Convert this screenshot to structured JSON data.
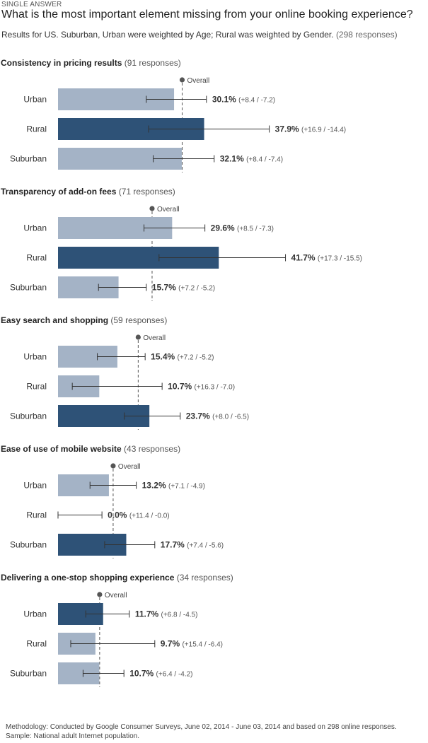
{
  "header": {
    "kicker": "SINGLE ANSWER",
    "title": "What is the most important element missing from your online booking experience?",
    "subtitle": "Results for US. Suburban, Urban were weighted by Age; Rural was weighted by Gender.",
    "total_responses": "(298 responses)"
  },
  "colors": {
    "base": "#a4b3c6",
    "highlight": "#2e5277",
    "overall_line": "#555555",
    "error_bar": "#333333"
  },
  "chart_data": {
    "type": "bar",
    "orientation": "horizontal",
    "overall_label": "Overall",
    "groups": [
      {
        "title": "Consistency in pricing results",
        "responses": "(91 responses)",
        "overall": 32.2,
        "rows": [
          {
            "label": "Urban",
            "value": 30.1,
            "value_label": "30.1%",
            "err_label": "(+8.4 / -7.2)",
            "plus": 8.4,
            "minus": 7.2,
            "highlight": false
          },
          {
            "label": "Rural",
            "value": 37.9,
            "value_label": "37.9%",
            "err_label": "(+16.9 / -14.4)",
            "plus": 16.9,
            "minus": 14.4,
            "highlight": true
          },
          {
            "label": "Suburban",
            "value": 32.1,
            "value_label": "32.1%",
            "err_label": "(+8.4 / -7.4)",
            "plus": 8.4,
            "minus": 7.4,
            "highlight": false
          }
        ]
      },
      {
        "title": "Transparency of add-on fees",
        "responses": "(71 responses)",
        "overall": 24.4,
        "rows": [
          {
            "label": "Urban",
            "value": 29.6,
            "value_label": "29.6%",
            "err_label": "(+8.5 / -7.3)",
            "plus": 8.5,
            "minus": 7.3,
            "highlight": false
          },
          {
            "label": "Rural",
            "value": 41.7,
            "value_label": "41.7%",
            "err_label": "(+17.3 / -15.5)",
            "plus": 17.3,
            "minus": 15.5,
            "highlight": true
          },
          {
            "label": "Suburban",
            "value": 15.7,
            "value_label": "15.7%",
            "err_label": "(+7.2 / -5.2)",
            "plus": 7.2,
            "minus": 5.2,
            "highlight": false
          }
        ]
      },
      {
        "title": "Easy search and shopping",
        "responses": "(59 responses)",
        "overall": 20.8,
        "rows": [
          {
            "label": "Urban",
            "value": 15.4,
            "value_label": "15.4%",
            "err_label": "(+7.2 / -5.2)",
            "plus": 7.2,
            "minus": 5.2,
            "highlight": false
          },
          {
            "label": "Rural",
            "value": 10.7,
            "value_label": "10.7%",
            "err_label": "(+16.3 / -7.0)",
            "plus": 16.3,
            "minus": 7.0,
            "highlight": false
          },
          {
            "label": "Suburban",
            "value": 23.7,
            "value_label": "23.7%",
            "err_label": "(+8.0 / -6.5)",
            "plus": 8.0,
            "minus": 6.5,
            "highlight": true
          }
        ]
      },
      {
        "title": "Ease of use of mobile website",
        "responses": "(43 responses)",
        "overall": 14.3,
        "rows": [
          {
            "label": "Urban",
            "value": 13.2,
            "value_label": "13.2%",
            "err_label": "(+7.1 / -4.9)",
            "plus": 7.1,
            "minus": 4.9,
            "highlight": false
          },
          {
            "label": "Rural",
            "value": 0.0,
            "value_label": "0.0%",
            "err_label": "(+11.4 / -0.0)",
            "plus": 11.4,
            "minus": 0.0,
            "highlight": false
          },
          {
            "label": "Suburban",
            "value": 17.7,
            "value_label": "17.7%",
            "err_label": "(+7.4 / -5.6)",
            "plus": 7.4,
            "minus": 5.6,
            "highlight": true
          }
        ]
      },
      {
        "title": "Delivering a one-stop shopping experience",
        "responses": "(34 responses)",
        "overall": 10.8,
        "rows": [
          {
            "label": "Urban",
            "value": 11.7,
            "value_label": "11.7%",
            "err_label": "(+6.8 / -4.5)",
            "plus": 6.8,
            "minus": 4.5,
            "highlight": true
          },
          {
            "label": "Rural",
            "value": 9.7,
            "value_label": "9.7%",
            "err_label": "(+15.4 / -6.4)",
            "plus": 15.4,
            "minus": 6.4,
            "highlight": false
          },
          {
            "label": "Suburban",
            "value": 10.7,
            "value_label": "10.7%",
            "err_label": "(+6.4 / -4.2)",
            "plus": 6.4,
            "minus": 4.2,
            "highlight": false
          }
        ]
      }
    ]
  },
  "footer": {
    "methodology": "Methodology: Conducted by Google Consumer Surveys, June 02, 2014 - June 03, 2014 and based on 298 online responses. Sample: National adult Internet population."
  }
}
